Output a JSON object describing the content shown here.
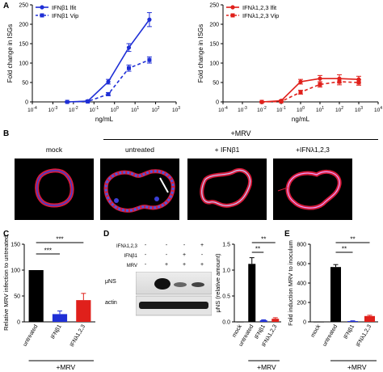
{
  "panels": {
    "A": "A",
    "B": "B",
    "C": "C",
    "D": "D",
    "E": "E"
  },
  "panelA_left": {
    "legend": [
      "IFNβ1 lfit",
      "IFNβ1 Vip"
    ],
    "ylabel": "Fold change in ISGs",
    "xlabel": "ng/mL",
    "yticks": [
      "0",
      "50",
      "100",
      "150",
      "200",
      "250"
    ],
    "xtick_exponents": [
      "-4",
      "-3",
      "-2",
      "-1",
      "0",
      "1",
      "2",
      "3"
    ]
  },
  "panelA_right": {
    "legend": [
      "IFNλ1,2,3 lfit",
      "IFNλ1,2,3 Vip"
    ],
    "ylabel": "Fold change in ISGs",
    "xlabel": "ng/mL",
    "yticks": [
      "0",
      "50",
      "100",
      "150",
      "200",
      "250"
    ],
    "xtick_exponents": [
      "-4",
      "-3",
      "-2",
      "-1",
      "0",
      "1",
      "2",
      "3",
      "4"
    ]
  },
  "panelB": {
    "header": "+MRV",
    "labels": [
      "mock",
      "untreated",
      "+ IFNβ1",
      "+IFNλ1,2,3"
    ]
  },
  "panelC": {
    "ylabel": "Relative MRV infection to untreated",
    "yticks": [
      "0",
      "50",
      "100",
      "150"
    ],
    "significance": [
      "***",
      "***"
    ],
    "group_label": "+MRV"
  },
  "panelD_blot": {
    "row_labels": [
      "IFNλ1,2,3",
      "IFNβ1",
      "MRV"
    ],
    "signs": [
      [
        "-",
        "-",
        "-",
        "+"
      ],
      [
        "-",
        "-",
        "+",
        "-"
      ],
      [
        "-",
        "+",
        "+",
        "+"
      ]
    ],
    "band_labels": [
      "μNS",
      "actin"
    ]
  },
  "panelD_chart": {
    "ylabel": "μNS (relative amount)",
    "yticks": [
      "0.0",
      "0.5",
      "1.0",
      "1.5"
    ],
    "significance": [
      "**",
      "**"
    ],
    "group_label": "+MRV"
  },
  "panelE": {
    "ylabel": "Fold induction MRV to inoculum",
    "yticks": [
      "0",
      "200",
      "400",
      "600",
      "800"
    ],
    "significance": [
      "**",
      "**"
    ],
    "group_label": "+MRV"
  },
  "colors": {
    "ifnb": "#1f2fd6",
    "ifnl": "#e0201b",
    "untreated": "#000000"
  },
  "chart_data": [
    {
      "type": "line",
      "xscale": "log",
      "xlim": [
        0.0001,
        1000
      ],
      "ylim": [
        0,
        250
      ],
      "ylabel": "Fold change in ISGs",
      "xlabel": "ng/mL",
      "series": [
        {
          "name": "IFNβ1 lfit",
          "style": "solid",
          "color": "#1f2fd6",
          "x": [
            0.005,
            0.05,
            0.5,
            5,
            50
          ],
          "y": [
            0,
            2,
            52,
            140,
            212
          ],
          "err": [
            1,
            2,
            6,
            10,
            18
          ]
        },
        {
          "name": "IFNβ1 Vip",
          "style": "dashed",
          "color": "#1f2fd6",
          "x": [
            0.005,
            0.05,
            0.5,
            5,
            50
          ],
          "y": [
            0,
            1,
            20,
            87,
            108
          ],
          "err": [
            1,
            1,
            4,
            8,
            8
          ]
        }
      ]
    },
    {
      "type": "line",
      "xscale": "log",
      "xlim": [
        0.0001,
        10000
      ],
      "ylim": [
        0,
        250
      ],
      "ylabel": "Fold change in ISGs",
      "xlabel": "ng/mL",
      "series": [
        {
          "name": "IFNλ1,2,3 lfit",
          "style": "solid",
          "color": "#e0201b",
          "x": [
            0.01,
            0.1,
            1,
            10,
            100,
            1000
          ],
          "y": [
            0,
            3,
            52,
            60,
            60,
            58
          ],
          "err": [
            1,
            2,
            6,
            8,
            10,
            8
          ]
        },
        {
          "name": "IFNλ1,2,3 Vip",
          "style": "dashed",
          "color": "#e0201b",
          "x": [
            0.01,
            0.1,
            1,
            10,
            100,
            1000
          ],
          "y": [
            0,
            1,
            25,
            45,
            52,
            50
          ],
          "err": [
            1,
            1,
            5,
            7,
            8,
            7
          ]
        }
      ]
    },
    {
      "type": "bar",
      "categories": [
        "untreated",
        "IFNβ1",
        "IFNλ1,2,3"
      ],
      "values": [
        100,
        15,
        42
      ],
      "errors": [
        0,
        6,
        13
      ],
      "colors": [
        "#000000",
        "#1f2fd6",
        "#e0201b"
      ],
      "ylim": [
        0,
        150
      ],
      "ylabel": "Relative MRV infection to untreated"
    },
    {
      "type": "bar",
      "categories": [
        "mock",
        "untreated",
        "IFNβ1",
        "IFNλ1,2,3"
      ],
      "values": [
        0,
        1.12,
        0.03,
        0.06
      ],
      "errors": [
        0,
        0.12,
        0.01,
        0.02
      ],
      "colors": [
        "#000000",
        "#000000",
        "#1f2fd6",
        "#e0201b"
      ],
      "ylim": [
        0,
        1.5
      ],
      "ylabel": "μNS (relative amount)"
    },
    {
      "type": "bar",
      "categories": [
        "mock",
        "untreated",
        "IFNβ1",
        "IFNλ1,2,3"
      ],
      "values": [
        0,
        565,
        8,
        60
      ],
      "errors": [
        0,
        25,
        3,
        8
      ],
      "colors": [
        "#000000",
        "#000000",
        "#1f2fd6",
        "#e0201b"
      ],
      "ylim": [
        0,
        800
      ],
      "ylabel": "Fold induction MRV to inoculum"
    }
  ]
}
